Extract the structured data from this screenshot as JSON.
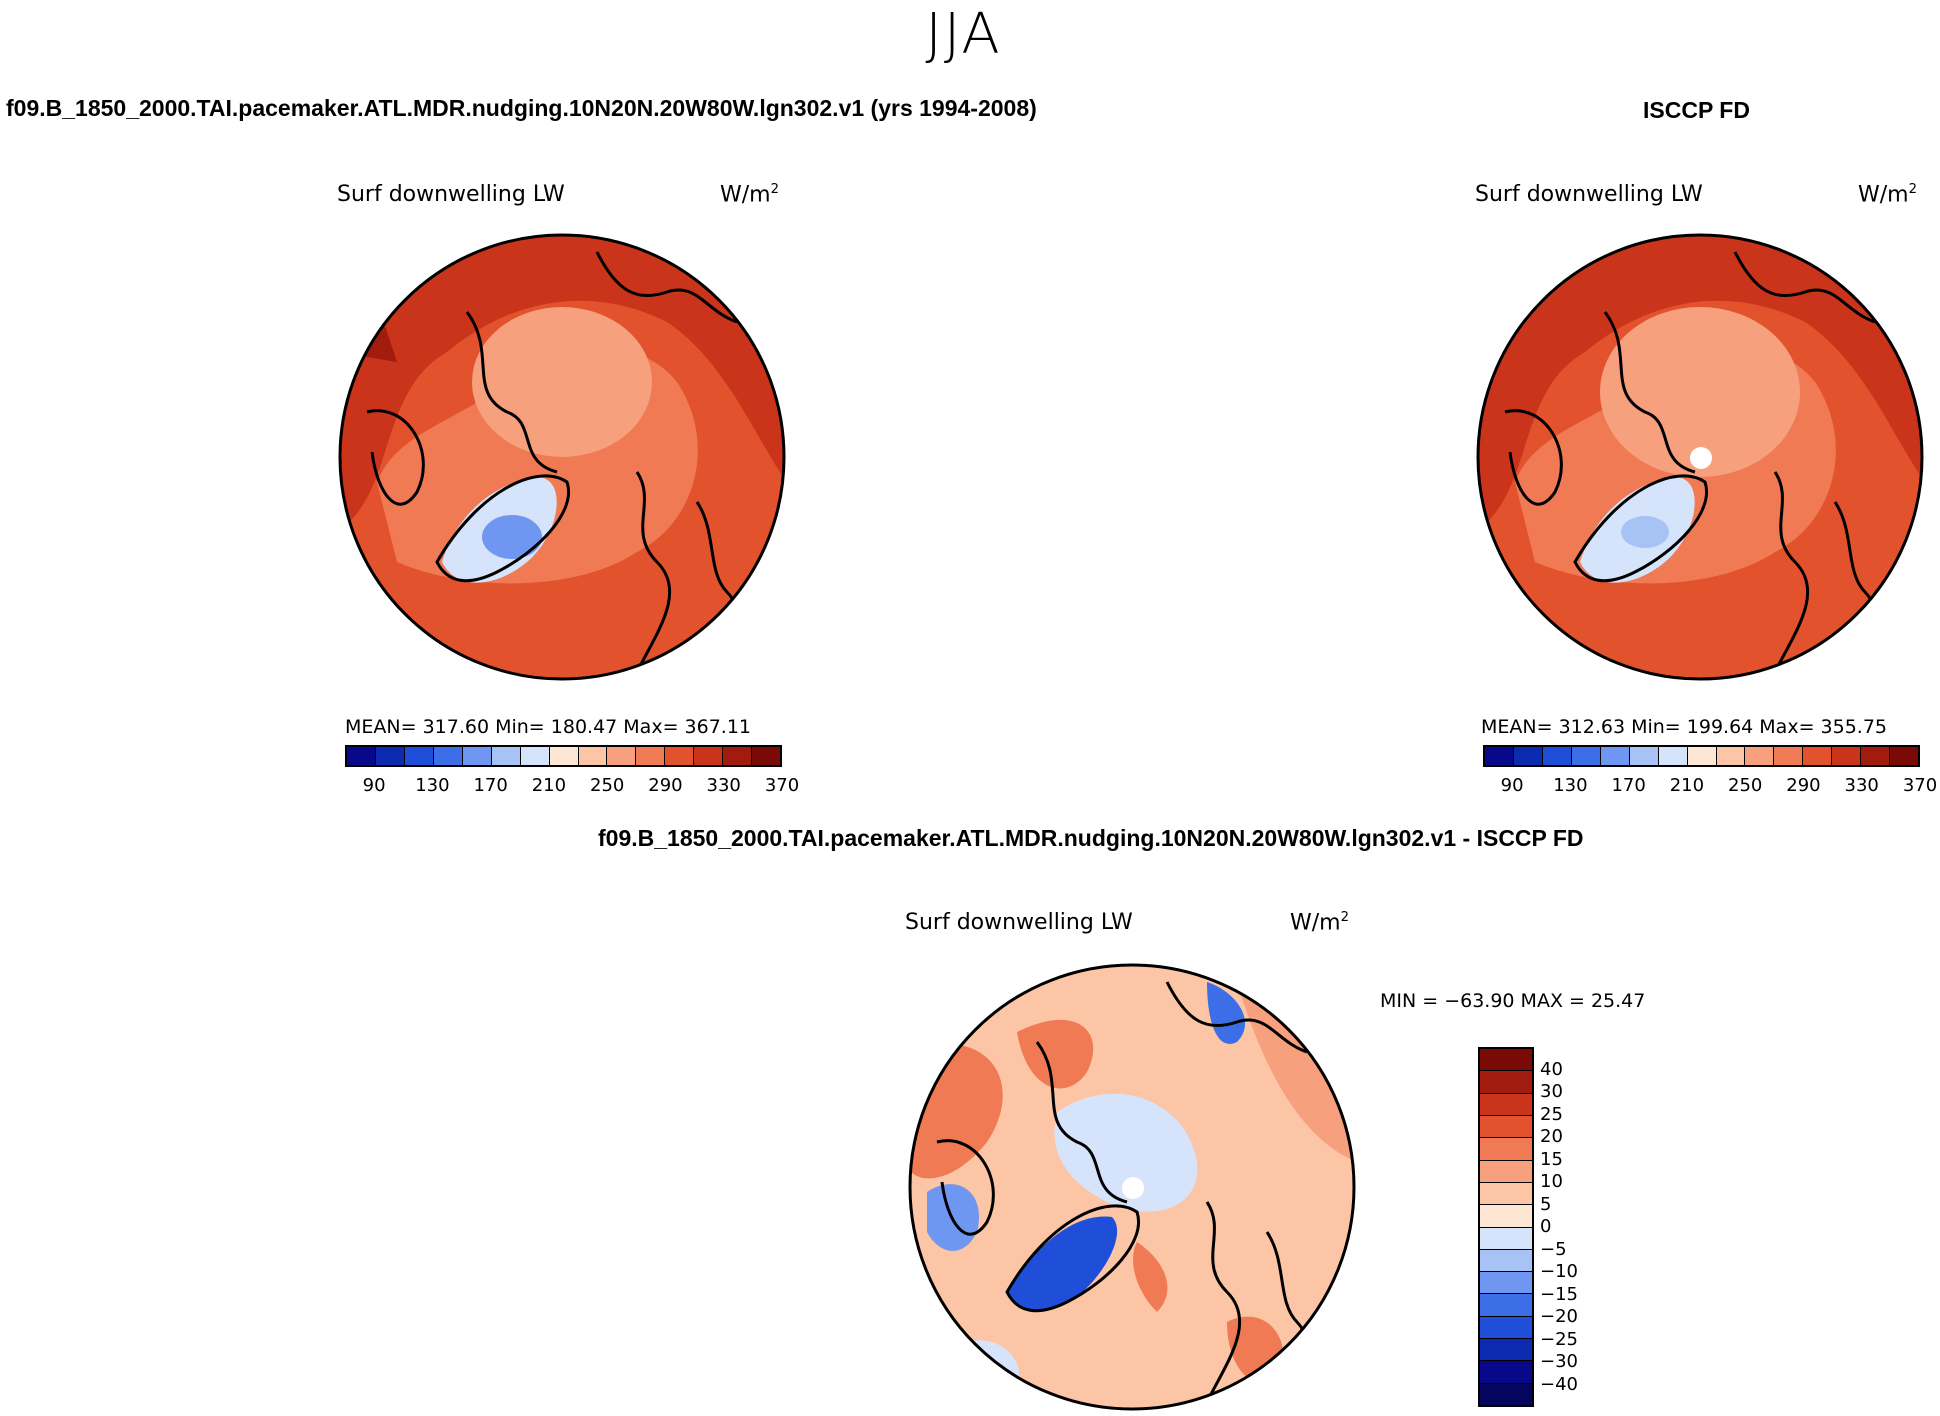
{
  "figure": {
    "season": "JJA"
  },
  "panels": {
    "model": {
      "title": "f09.B_1850_2000.TAI.pacemaker.ATL.MDR.nudging.10N20N.20W80W.lgn302.v1 (yrs 1994-2008)",
      "variable": "Surf downwelling LW",
      "units_base": "W/m",
      "units_exp": "2",
      "stats": "MEAN= 317.60   Min= 180.47   Max= 367.11"
    },
    "obs": {
      "title": "ISCCP FD",
      "variable": "Surf downwelling LW",
      "units_base": "W/m",
      "units_exp": "2",
      "stats": "MEAN= 312.63   Min= 199.64   Max= 355.75"
    },
    "diff": {
      "title": "f09.B_1850_2000.TAI.pacemaker.ATL.MDR.nudging.10N20N.20W80W.lgn302.v1 - ISCCP FD",
      "variable": "Surf downwelling LW",
      "units_base": "W/m",
      "units_exp": "2",
      "stats": "MIN = −63.90 MAX =  25.47"
    }
  },
  "chart_data": [
    {
      "type": "heatmap",
      "projection": "north polar stereographic",
      "title": "Surf downwelling LW",
      "units": "W/m2",
      "mean": 317.6,
      "min": 180.47,
      "max": 367.11,
      "colorbar": {
        "orientation": "horizontal",
        "tick_labels": [
          "90",
          "130",
          "170",
          "210",
          "250",
          "290",
          "330",
          "370"
        ],
        "colors": [
          "#08088a",
          "#0c2bb0",
          "#1f4fd8",
          "#3c6ee8",
          "#6f96f0",
          "#a7c2f5",
          "#d6e4fb",
          "#fde6d3",
          "#fbc5a6",
          "#f7a07d",
          "#f07a54",
          "#e2532d",
          "#c9341b",
          "#a21b0f",
          "#7a0a05"
        ]
      }
    },
    {
      "type": "heatmap",
      "projection": "north polar stereographic",
      "title": "Surf downwelling LW",
      "units": "W/m2",
      "mean": 312.63,
      "min": 199.64,
      "max": 355.75,
      "colorbar": {
        "orientation": "horizontal",
        "tick_labels": [
          "90",
          "130",
          "170",
          "210",
          "250",
          "290",
          "330",
          "370"
        ],
        "colors": [
          "#08088a",
          "#0c2bb0",
          "#1f4fd8",
          "#3c6ee8",
          "#6f96f0",
          "#a7c2f5",
          "#d6e4fb",
          "#fde6d3",
          "#fbc5a6",
          "#f7a07d",
          "#f07a54",
          "#e2532d",
          "#c9341b",
          "#a21b0f",
          "#7a0a05"
        ]
      }
    },
    {
      "type": "heatmap",
      "projection": "north polar stereographic",
      "title": "Surf downwelling LW",
      "units": "W/m2",
      "min": -63.9,
      "max": 25.47,
      "colorbar": {
        "orientation": "vertical",
        "tick_labels": [
          "40",
          "30",
          "25",
          "20",
          "15",
          "10",
          "5",
          "0",
          "−5",
          "−10",
          "−15",
          "−20",
          "−25",
          "−30",
          "−40"
        ],
        "colors": [
          "#7a0a05",
          "#a21b0f",
          "#c9341b",
          "#e2532d",
          "#f07a54",
          "#f7a07d",
          "#fbc5a6",
          "#fde6d3",
          "#d6e4fb",
          "#a7c2f5",
          "#6f96f0",
          "#3c6ee8",
          "#1f4fd8",
          "#0c2bb0",
          "#08088a",
          "#050560"
        ]
      }
    }
  ]
}
